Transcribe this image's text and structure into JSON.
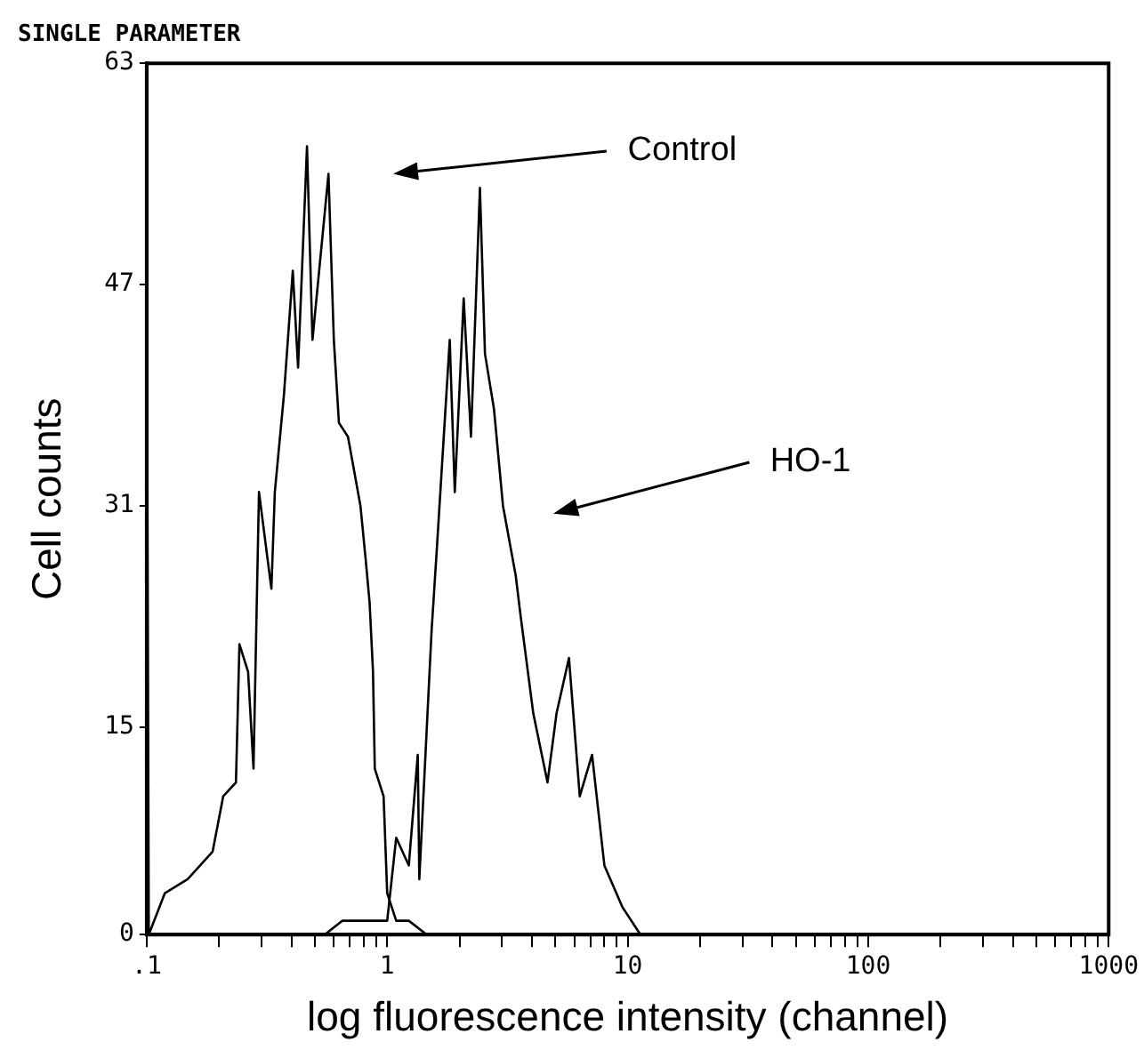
{
  "chart_data": {
    "type": "line",
    "title": "SINGLE PARAMETER",
    "xlabel": "log fluorescence intensity (channel)",
    "ylabel": "Cell counts",
    "log": "x",
    "grid": false,
    "legend": false,
    "marker": "none",
    "line_style": "solid",
    "xlim": [
      0.1,
      1000
    ],
    "ylim": [
      0,
      63
    ],
    "xticks": [
      {
        "value": 0.1,
        "label": ".1"
      },
      {
        "value": 0.2,
        "label": null
      },
      {
        "value": 0.3,
        "label": null
      },
      {
        "value": 0.4,
        "label": null
      },
      {
        "value": 0.5,
        "label": null
      },
      {
        "value": 0.6,
        "label": null
      },
      {
        "value": 0.7,
        "label": null
      },
      {
        "value": 0.8,
        "label": null
      },
      {
        "value": 0.9,
        "label": null
      },
      1,
      {
        "value": 2,
        "label": null
      },
      {
        "value": 3,
        "label": null
      },
      {
        "value": 4,
        "label": null
      },
      {
        "value": 5,
        "label": null
      },
      {
        "value": 6,
        "label": null
      },
      {
        "value": 7,
        "label": null
      },
      {
        "value": 8,
        "label": null
      },
      {
        "value": 9,
        "label": null
      },
      10,
      {
        "value": 20,
        "label": null
      },
      {
        "value": 30,
        "label": null
      },
      {
        "value": 40,
        "label": null
      },
      {
        "value": 50,
        "label": null
      },
      {
        "value": 60,
        "label": null
      },
      {
        "value": 70,
        "label": null
      },
      {
        "value": 80,
        "label": null
      },
      {
        "value": 90,
        "label": null
      },
      100,
      {
        "value": 200,
        "label": null
      },
      {
        "value": 300,
        "label": null
      },
      {
        "value": 400,
        "label": null
      },
      {
        "value": 500,
        "label": null
      },
      {
        "value": 600,
        "label": null
      },
      {
        "value": 700,
        "label": null
      },
      {
        "value": 800,
        "label": null
      },
      {
        "value": 900,
        "label": null
      },
      1000
    ],
    "yticks": [
      0,
      15,
      31,
      47,
      63
    ],
    "series": [
      {
        "color": "#000000",
        "x": [
          0.1,
          0.1,
          0.102,
          0.119,
          0.148,
          0.188,
          0.208,
          0.235,
          0.243,
          0.264,
          0.278,
          0.293,
          0.33,
          0.341,
          0.372,
          0.405,
          0.426,
          0.464,
          0.489,
          0.57,
          0.6,
          0.63,
          0.687,
          0.774,
          0.815,
          0.845,
          0.873,
          0.888,
          0.966,
          1,
          1.09,
          1.23,
          1.46,
          1000
        ],
        "values": [
          0,
          50,
          0,
          3,
          4,
          6,
          10,
          11,
          21,
          19,
          12,
          32,
          25,
          32,
          39,
          48,
          41,
          57,
          43,
          55,
          43,
          37,
          36,
          31,
          27,
          24,
          19,
          12,
          10,
          3,
          1,
          1,
          0,
          0
        ]
      },
      {
        "color": "#000000",
        "x": [
          0.1,
          0.55,
          0.65,
          0.8,
          1,
          1.09,
          1.23,
          1.34,
          1.36,
          1.53,
          1.61,
          1.82,
          1.91,
          2.08,
          2.23,
          2.43,
          2.55,
          2.78,
          3.03,
          3.42,
          3.59,
          4.05,
          4.64,
          5.06,
          5.7,
          6.32,
          7.11,
          8,
          9.5,
          11.3,
          14.8,
          1000
        ],
        "values": [
          0,
          0,
          1,
          1,
          1,
          7,
          5,
          13,
          4,
          22,
          28,
          43,
          32,
          46,
          36,
          54,
          42,
          38,
          31,
          26,
          23,
          16,
          11,
          16,
          20,
          10,
          13,
          5,
          2,
          0,
          0,
          0
        ]
      }
    ],
    "annotations": [
      "Control",
      "HO-1"
    ]
  }
}
